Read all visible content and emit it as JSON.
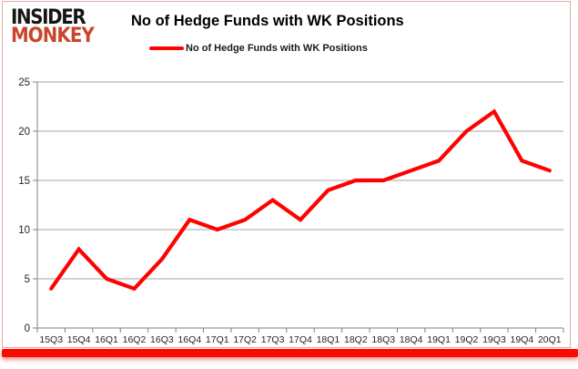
{
  "brand": {
    "line1": "INSIDER",
    "line2": "MONKEY"
  },
  "title": "No of Hedge Funds with WK Positions",
  "legend": {
    "label": "No of Hedge Funds with WK Positions"
  },
  "colors": {
    "line": "#fe0202",
    "gridline": "#a6a6a6",
    "axis": "#808080",
    "tick_label": "#262626",
    "logo_red": "#c7472e",
    "bottom_bar": "#fb0a01",
    "card_border": "#e3aba5"
  },
  "chart_data": {
    "type": "line",
    "title": "No of Hedge Funds with WK Positions",
    "categories": [
      "15Q3",
      "15Q4",
      "16Q1",
      "16Q2",
      "16Q3",
      "16Q4",
      "17Q1",
      "17Q2",
      "17Q3",
      "17Q4",
      "18Q1",
      "18Q2",
      "18Q3",
      "18Q4",
      "19Q1",
      "19Q2",
      "19Q3",
      "19Q4",
      "20Q1"
    ],
    "series": [
      {
        "name": "No of Hedge Funds with WK Positions",
        "values": [
          4,
          8,
          5,
          4,
          7,
          11,
          10,
          11,
          13,
          11,
          14,
          15,
          15,
          16,
          17,
          20,
          22,
          17,
          16
        ]
      }
    ],
    "xlabel": "",
    "ylabel": "",
    "ylim": [
      0,
      25
    ],
    "yticks": [
      0,
      5,
      10,
      15,
      20,
      25
    ],
    "grid": "horizontal",
    "legend_position": "top",
    "line_color": "#fe0202",
    "line_width": 4.2
  }
}
